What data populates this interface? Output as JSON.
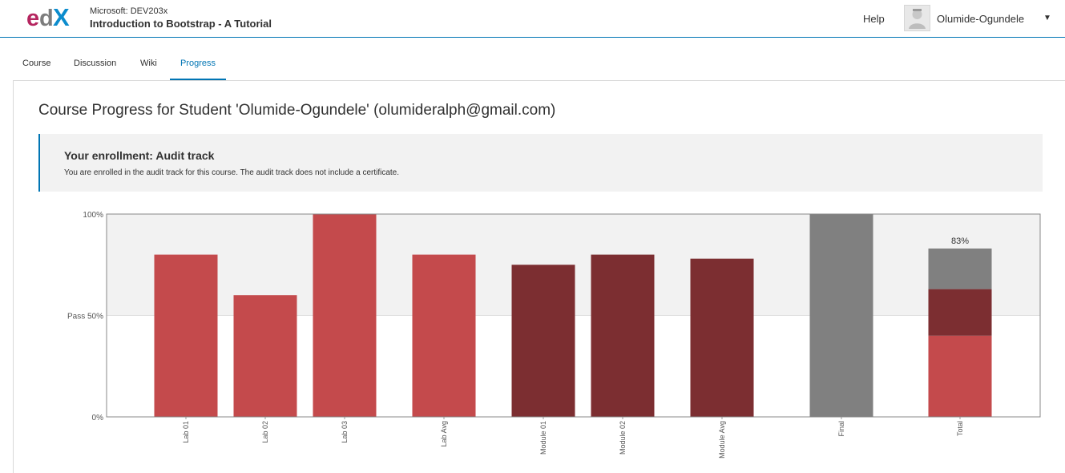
{
  "header": {
    "org": "Microsoft: DEV203x",
    "course_title": "Introduction to Bootstrap - A Tutorial",
    "help_label": "Help",
    "username": "Olumide-Ogundele",
    "caret": "▼",
    "logo_text": "edX"
  },
  "tabs": [
    {
      "label": "Course"
    },
    {
      "label": "Discussion"
    },
    {
      "label": "Wiki"
    },
    {
      "label": "Progress"
    }
  ],
  "page": {
    "title": "Course Progress for Student 'Olumide-Ogundele' (olumideralph@gmail.com)"
  },
  "enrollment": {
    "heading": "Your enrollment: Audit track",
    "message": "You are enrolled in the audit track for this course. The audit track does not include a certificate."
  },
  "colors": {
    "accent": "#0075b4",
    "lab": "#c44a4c",
    "module": "#7c2e31",
    "final": "#808080",
    "pass_region": "#f2f2f2"
  },
  "chart_data": {
    "type": "bar",
    "title": "",
    "xlabel": "",
    "ylabel": "",
    "ylim": [
      0,
      100
    ],
    "y_ticks": [
      {
        "value": 0,
        "label": "0%"
      },
      {
        "value": 50,
        "label": "Pass 50%"
      },
      {
        "value": 100,
        "label": "100%"
      }
    ],
    "pass_threshold": 50,
    "categories": [
      "Lab 01",
      "Lab 02",
      "Lab 03",
      "Lab Avg",
      "Module 01",
      "Module 02",
      "Module Avg",
      "Final",
      "Total"
    ],
    "values": [
      80,
      60,
      100,
      80,
      75,
      80,
      78,
      100,
      83
    ],
    "bar_groups": [
      "lab",
      "lab",
      "lab",
      "lab",
      "module",
      "module",
      "module",
      "final",
      "total"
    ],
    "total_stack": [
      {
        "name": "Lab",
        "value": 40
      },
      {
        "name": "Module",
        "value": 23
      },
      {
        "name": "Final",
        "value": 20
      }
    ],
    "total_label": "83%"
  }
}
